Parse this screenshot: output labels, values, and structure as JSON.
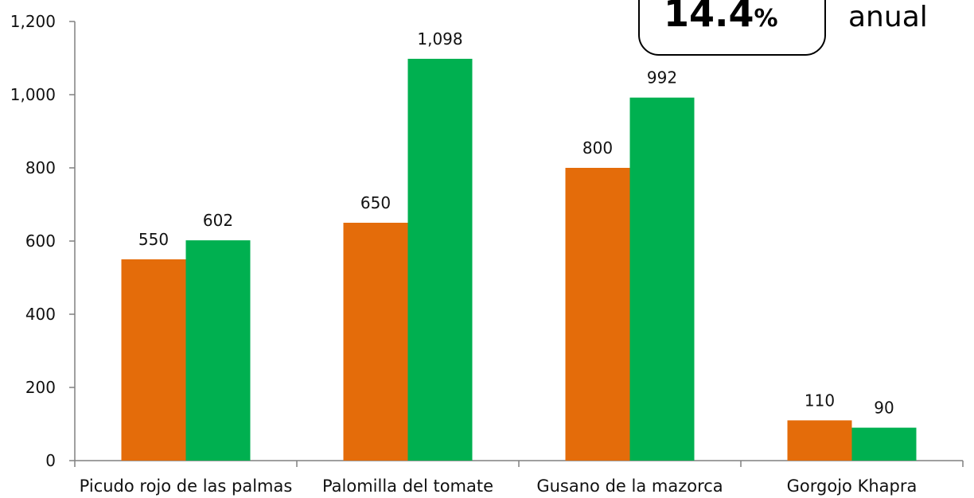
{
  "callout": {
    "value": "14.4",
    "percent_sign": "%",
    "unit": "anual"
  },
  "chart_data": {
    "type": "bar",
    "title": "",
    "xlabel": "",
    "ylabel": "",
    "ylim": [
      0,
      1200
    ],
    "yticks": [
      0,
      200,
      400,
      600,
      800,
      1000,
      1200
    ],
    "ytick_labels": [
      "0",
      "200",
      "400",
      "600",
      "800",
      "1,000",
      "1,200"
    ],
    "grid": false,
    "legend": "none",
    "categories": [
      "Picudo rojo de las palmas",
      "Palomilla del tomate",
      "Gusano de la mazorca",
      "Gorgojo Khapra"
    ],
    "series": [
      {
        "color": "#E46C0A",
        "values": [
          550,
          650,
          800,
          110
        ],
        "labels": [
          "550",
          "650",
          "800",
          "110"
        ]
      },
      {
        "color": "#00B050",
        "values": [
          602,
          1098,
          992,
          90
        ],
        "labels": [
          "602",
          "1,098",
          "992",
          "90"
        ]
      }
    ]
  }
}
